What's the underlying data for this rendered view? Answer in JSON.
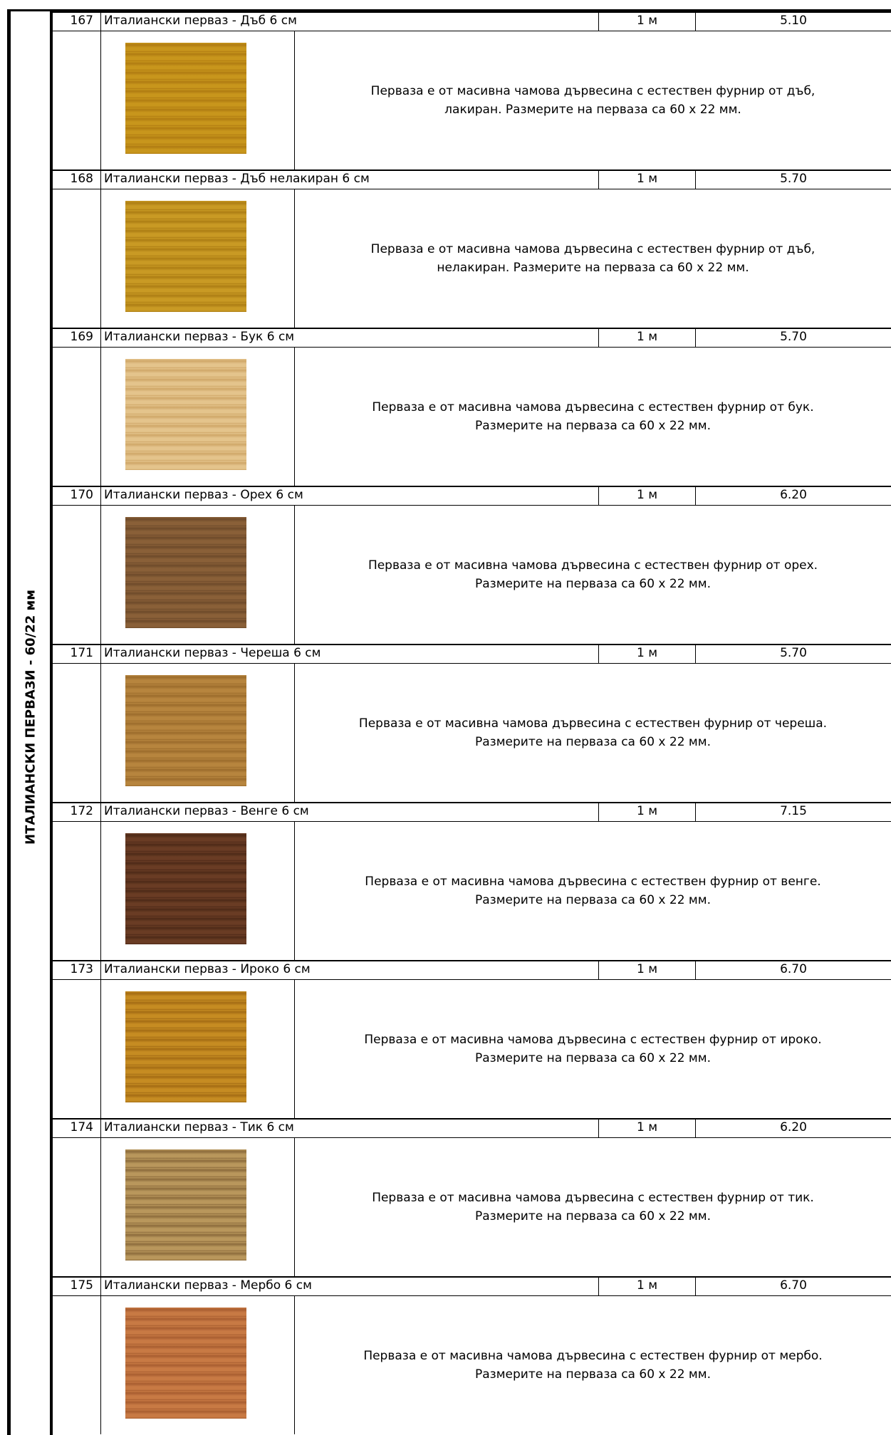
{
  "sidebar": {
    "title": "ИТАЛИАНСКИ ПЕРВАЗИ - 60/22 мм"
  },
  "rows": [
    {
      "number": "167",
      "name": "Италиански перваз -  Дъб 6 см",
      "unit": "1 м",
      "price": "5.10",
      "description": [
        "Перваза е от масивна чамова дървесина с естествен фурнир от дъб,",
        "лакиран. Размерите на перваза са 60 х 22 мм."
      ]
    },
    {
      "number": "168",
      "name": "Италиански перваз -  Дъб нелакиран 6 см",
      "unit": "1 м",
      "price": "5.70",
      "description": [
        "Перваза е от масивна чамова дървесина с естествен фурнир от дъб,",
        "нелакиран. Размерите на перваза са 60 х 22 мм."
      ]
    },
    {
      "number": "169",
      "name": "Италиански перваз -  Бук 6 см",
      "unit": "1 м",
      "price": "5.70",
      "description": [
        "Перваза е от масивна чамова дървесина с естествен фурнир от бук.",
        "Размерите на перваза са 60 х 22 мм."
      ]
    },
    {
      "number": "170",
      "name": "Италиански перваз -  Орех 6 см",
      "unit": "1 м",
      "price": "6.20",
      "description": [
        "Перваза е от масивна чамова дървесина с естествен фурнир от орех.",
        "Размерите на перваза са 60 х 22 мм."
      ]
    },
    {
      "number": "171",
      "name": "Италиански перваз -  Череша 6 см",
      "unit": "1 м",
      "price": "5.70",
      "description": [
        "Перваза е от масивна чамова дървесина с естествен фурнир от череша.",
        "Размерите на перваза са 60 х 22 мм."
      ]
    },
    {
      "number": "172",
      "name": "Италиански перваз -  Венге 6 см",
      "unit": "1 м",
      "price": "7.15",
      "description": [
        "Перваза е от масивна чамова дървесина с естествен фурнир от венге.",
        "Размерите на перваза са 60 х 22 мм."
      ]
    },
    {
      "number": "173",
      "name": "Италиански перваз -  Ироко 6 см",
      "unit": "1 м",
      "price": "6.70",
      "description": [
        "Перваза е от масивна чамова дървесина с естествен фурнир от ироко.",
        "Размерите на перваза са 60 х 22 мм."
      ]
    },
    {
      "number": "174",
      "name": "Италиански перваз -  Тик 6 см",
      "unit": "1 м",
      "price": "6.20",
      "description": [
        "Перваза е от масивна чамова дървесина с естествен фурнир от тик.",
        "Размерите на перваза са 60 х 22 мм."
      ]
    },
    {
      "number": "175",
      "name": "Италиански перваз -  Мербо 6 см",
      "unit": "1 м",
      "price": "6.70",
      "description": [
        "Перваза е от масивна чамова дървесина с естествен фурнир от мербо.",
        "Размерите на перваза са 60 х 22 мм."
      ]
    }
  ]
}
